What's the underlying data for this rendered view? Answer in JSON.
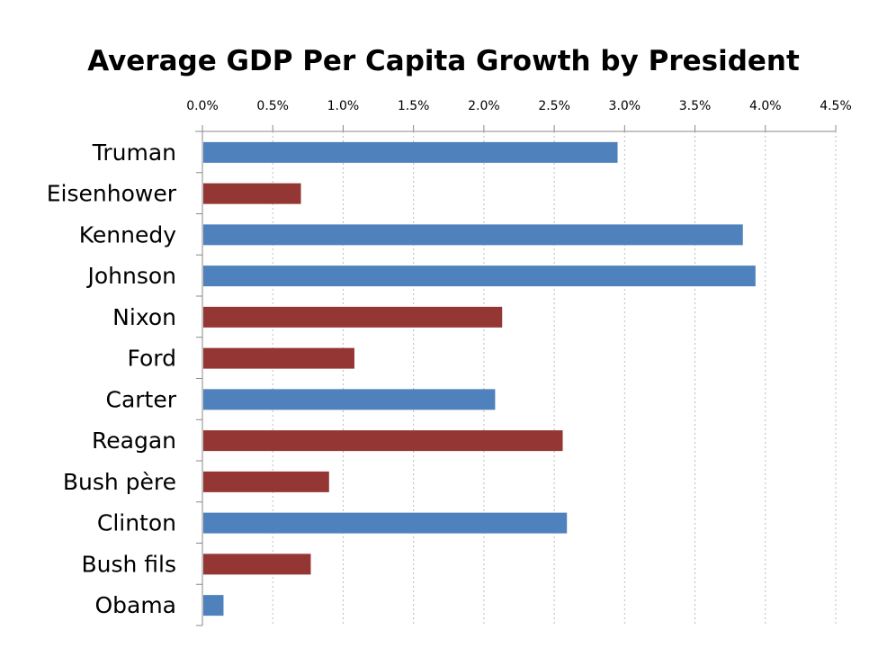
{
  "chart_data": {
    "type": "bar",
    "orientation": "horizontal",
    "title": "Average GDP Per Capita Growth by President",
    "xlabel": "",
    "ylabel": "",
    "xlim": [
      0,
      4.5
    ],
    "x_ticks": [
      "0.0%",
      "0.5%",
      "1.0%",
      "1.5%",
      "2.0%",
      "2.5%",
      "3.0%",
      "3.5%",
      "4.0%",
      "4.5%"
    ],
    "x_axis_position": "top",
    "grid": "vertical dashed",
    "legend": "none",
    "unit": "%",
    "categories": [
      "Truman",
      "Eisenhower",
      "Kennedy",
      "Johnson",
      "Nixon",
      "Ford",
      "Carter",
      "Reagan",
      "Bush père",
      "Clinton",
      "Bush fils",
      "Obama"
    ],
    "values": [
      2.95,
      0.7,
      3.84,
      3.93,
      2.13,
      1.08,
      2.08,
      2.56,
      0.9,
      2.59,
      0.77,
      0.15
    ],
    "party": [
      "D",
      "R",
      "D",
      "D",
      "R",
      "R",
      "D",
      "R",
      "R",
      "D",
      "R",
      "D"
    ],
    "colors": {
      "D": "#4f81bd",
      "R": "#943634"
    }
  }
}
